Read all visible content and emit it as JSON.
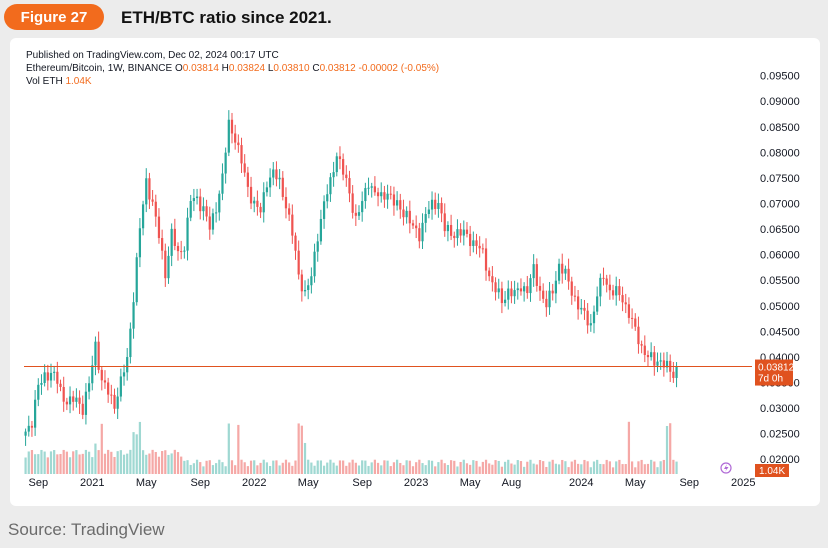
{
  "header": {
    "figure_label": "Figure 27",
    "title": "ETH/BTC ratio since 2021."
  },
  "footer": {
    "source": "Source: TradingView"
  },
  "legend_text": {
    "published": "Published on TradingView.com, Dec 02, 2024 00:17 UTC",
    "symbol": "Ethereum/Bitcoin, 1W, BINANCE",
    "o_label": "O",
    "o_value": "0.03814",
    "h_label": "H",
    "h_value": "0.03824",
    "l_label": "L",
    "l_value": "0.03810",
    "c_label": "C",
    "c_value": "0.03812",
    "change": "-0.00002 (-0.05%)",
    "vol_label": "Vol ETH",
    "vol_value": "1.04K"
  },
  "colors": {
    "up": "#26a69a",
    "down": "#ef5350",
    "vol_up": "#9fd8d2",
    "vol_down": "#f5a8a6",
    "accent": "#f26b1d",
    "price_line": "#e0521f"
  },
  "chart_data": {
    "type": "candlestick",
    "title": "ETH/BTC ratio since 2021.",
    "xlabel": "",
    "ylabel": "",
    "ylim": [
      0.0175,
      0.0965
    ],
    "y_ticks": [
      "0.09500",
      "0.09000",
      "0.08500",
      "0.08000",
      "0.07500",
      "0.07000",
      "0.06500",
      "0.06000",
      "0.05500",
      "0.05000",
      "0.04500",
      "0.04000",
      "0.03500",
      "0.03000",
      "0.02500",
      "0.02000"
    ],
    "x_ticks": [
      {
        "label": "Sep",
        "week": 4
      },
      {
        "label": "2021",
        "week": 21
      },
      {
        "label": "May",
        "week": 38
      },
      {
        "label": "Sep",
        "week": 55
      },
      {
        "label": "2022",
        "week": 72
      },
      {
        "label": "May",
        "week": 89
      },
      {
        "label": "Sep",
        "week": 106
      },
      {
        "label": "2023",
        "week": 123
      },
      {
        "label": "May",
        "week": 140
      },
      {
        "label": "Aug",
        "week": 153
      },
      {
        "label": "2024",
        "week": 175
      },
      {
        "label": "May",
        "week": 192
      },
      {
        "label": "Sep",
        "week": 209
      },
      {
        "label": "2025",
        "week": 226
      }
    ],
    "current_price": 0.03812,
    "current_price_label": "0.03812",
    "countdown_label": "7d 0h",
    "volume_label": "1.04K",
    "grid": false,
    "close_keypoints": [
      [
        0,
        0.0254
      ],
      [
        2,
        0.0275
      ],
      [
        4,
        0.034
      ],
      [
        6,
        0.0365
      ],
      [
        8,
        0.0368
      ],
      [
        10,
        0.0352
      ],
      [
        12,
        0.032
      ],
      [
        14,
        0.031
      ],
      [
        16,
        0.0318
      ],
      [
        18,
        0.03
      ],
      [
        20,
        0.0345
      ],
      [
        22,
        0.0425
      ],
      [
        24,
        0.0352
      ],
      [
        26,
        0.033
      ],
      [
        28,
        0.0308
      ],
      [
        30,
        0.035
      ],
      [
        32,
        0.0395
      ],
      [
        34,
        0.052
      ],
      [
        36,
        0.065
      ],
      [
        38,
        0.0745
      ],
      [
        40,
        0.07
      ],
      [
        42,
        0.0635
      ],
      [
        44,
        0.0565
      ],
      [
        46,
        0.064
      ],
      [
        48,
        0.06
      ],
      [
        50,
        0.062
      ],
      [
        52,
        0.0705
      ],
      [
        54,
        0.071
      ],
      [
        56,
        0.069
      ],
      [
        58,
        0.065
      ],
      [
        60,
        0.0695
      ],
      [
        62,
        0.075
      ],
      [
        64,
        0.0855
      ],
      [
        66,
        0.083
      ],
      [
        68,
        0.078
      ],
      [
        70,
        0.073
      ],
      [
        72,
        0.07
      ],
      [
        74,
        0.0682
      ],
      [
        76,
        0.0745
      ],
      [
        78,
        0.076
      ],
      [
        80,
        0.074
      ],
      [
        82,
        0.07
      ],
      [
        84,
        0.064
      ],
      [
        86,
        0.056
      ],
      [
        88,
        0.0525
      ],
      [
        90,
        0.0555
      ],
      [
        92,
        0.064
      ],
      [
        94,
        0.07
      ],
      [
        96,
        0.074
      ],
      [
        98,
        0.08
      ],
      [
        100,
        0.076
      ],
      [
        102,
        0.072
      ],
      [
        104,
        0.067
      ],
      [
        106,
        0.07
      ],
      [
        108,
        0.0745
      ],
      [
        110,
        0.072
      ],
      [
        112,
        0.071
      ],
      [
        114,
        0.0725
      ],
      [
        116,
        0.07
      ],
      [
        118,
        0.069
      ],
      [
        120,
        0.068
      ],
      [
        122,
        0.065
      ],
      [
        124,
        0.064
      ],
      [
        126,
        0.068
      ],
      [
        128,
        0.0695
      ],
      [
        130,
        0.0705
      ],
      [
        132,
        0.065
      ],
      [
        134,
        0.064
      ],
      [
        136,
        0.0645
      ],
      [
        138,
        0.064
      ],
      [
        140,
        0.063
      ],
      [
        142,
        0.062
      ],
      [
        144,
        0.06
      ],
      [
        146,
        0.056
      ],
      [
        148,
        0.053
      ],
      [
        150,
        0.051
      ],
      [
        152,
        0.053
      ],
      [
        154,
        0.052
      ],
      [
        156,
        0.054
      ],
      [
        158,
        0.053
      ],
      [
        160,
        0.057
      ],
      [
        162,
        0.053
      ],
      [
        164,
        0.05
      ],
      [
        166,
        0.053
      ],
      [
        168,
        0.058
      ],
      [
        170,
        0.056
      ],
      [
        172,
        0.053
      ],
      [
        174,
        0.05
      ],
      [
        176,
        0.048
      ],
      [
        178,
        0.0465
      ],
      [
        180,
        0.052
      ],
      [
        182,
        0.056
      ],
      [
        184,
        0.053
      ],
      [
        186,
        0.0525
      ],
      [
        188,
        0.0515
      ],
      [
        190,
        0.0485
      ],
      [
        192,
        0.045
      ],
      [
        194,
        0.042
      ],
      [
        196,
        0.04
      ],
      [
        198,
        0.039
      ],
      [
        200,
        0.0395
      ],
      [
        202,
        0.0378
      ],
      [
        204,
        0.0365
      ],
      [
        205,
        0.0381
      ]
    ],
    "volume_spike_weeks": [
      22,
      24,
      34,
      35,
      36,
      64,
      67,
      86,
      87,
      88,
      190,
      202,
      203
    ],
    "series": [
      {
        "type": "ohlc",
        "values": "derived from close_keypoints (weekly candles)"
      },
      {
        "type": "volume",
        "values": "relative weekly volume"
      }
    ]
  }
}
